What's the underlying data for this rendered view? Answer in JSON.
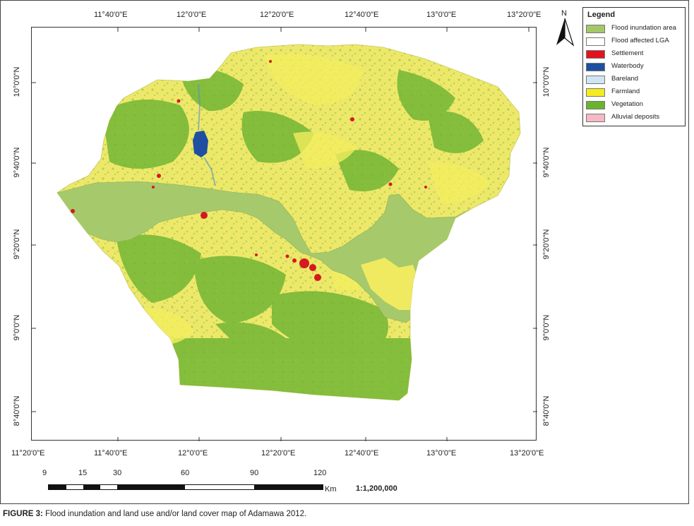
{
  "map": {
    "top_longitudes": [
      "11°40'0\"E",
      "12°0'0\"E",
      "12°20'0\"E",
      "12°40'0\"E",
      "13°0'0\"E",
      "13°20'0\"E"
    ],
    "bottom_longitudes": [
      "11°20'0\"E",
      "11°40'0\"E",
      "12°0'0\"E",
      "12°20'0\"E",
      "12°40'0\"E",
      "13°0'0\"E",
      "13°20'0\"E"
    ],
    "left_latitudes": [
      "10°0'0\"N",
      "9°40'0\"N",
      "9°20'0\"N",
      "9°0'0\"N",
      "8°40'0\"N"
    ],
    "right_latitudes": [
      "10°0'0\"N",
      "9°40'0\"N",
      "9°20'0\"N",
      "9°0'0\"N",
      "8°40'0\"N"
    ]
  },
  "legend": {
    "title": "Legend",
    "items": [
      {
        "label": "Flood inundation area",
        "color": "#a4c868"
      },
      {
        "label": "Flood affected LGA",
        "color": "#ffffff"
      },
      {
        "label": "Settlement",
        "color": "#e0141c"
      },
      {
        "label": "Waterbody",
        "color": "#1f4fa0"
      },
      {
        "label": "Bareland",
        "color": "#cfe6f2"
      },
      {
        "label": "Farmland",
        "color": "#f4ec1e"
      },
      {
        "label": "Vegetation",
        "color": "#6ab42c"
      },
      {
        "label": "Alluvial deposits",
        "color": "#f4b9c4"
      }
    ]
  },
  "north_arrow": {
    "label": "N",
    "icon": "north-arrow-icon"
  },
  "scale": {
    "numbers": [
      "9",
      "15",
      "30",
      "60",
      "90",
      "120"
    ],
    "unit": "Km",
    "ratio": "1:1,200,000"
  },
  "caption": {
    "label": "FIGURE 3:",
    "text": " Flood inundation and land use and/or land cover map of Adamawa 2012."
  }
}
